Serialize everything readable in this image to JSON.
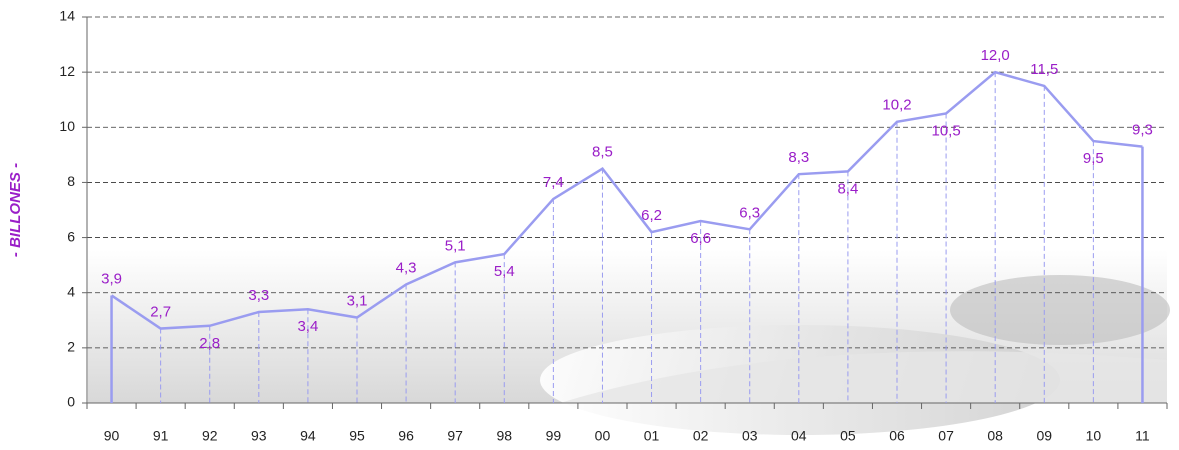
{
  "chart_data": {
    "type": "line",
    "ylabel": "- BILLONES -",
    "categories": [
      "90",
      "91",
      "92",
      "93",
      "94",
      "95",
      "96",
      "97",
      "98",
      "99",
      "00",
      "01",
      "02",
      "03",
      "04",
      "05",
      "06",
      "07",
      "08",
      "09",
      "10",
      "11"
    ],
    "series": [
      {
        "name": "Billones",
        "color": "#9a9cf0",
        "values": [
          3.9,
          2.7,
          2.8,
          3.3,
          3.4,
          3.1,
          4.3,
          5.1,
          5.4,
          7.4,
          8.5,
          6.2,
          6.6,
          6.3,
          8.3,
          8.4,
          10.2,
          10.5,
          12.0,
          11.5,
          9.5,
          9.3
        ]
      }
    ],
    "value_labels": [
      "3,9",
      "2,7",
      "2,8",
      "3,3",
      "3,4",
      "3,1",
      "4,3",
      "5,1",
      "5,4",
      "7,4",
      "8,5",
      "6,2",
      "6,6",
      "6,3",
      "8,3",
      "8,4",
      "10,2",
      "10,5",
      "12,0",
      "11,5",
      "9,5",
      "9,3"
    ],
    "ylim": [
      0,
      14
    ],
    "yticks": [
      0,
      2,
      4,
      6,
      8,
      10,
      12,
      14
    ],
    "grid": true
  }
}
